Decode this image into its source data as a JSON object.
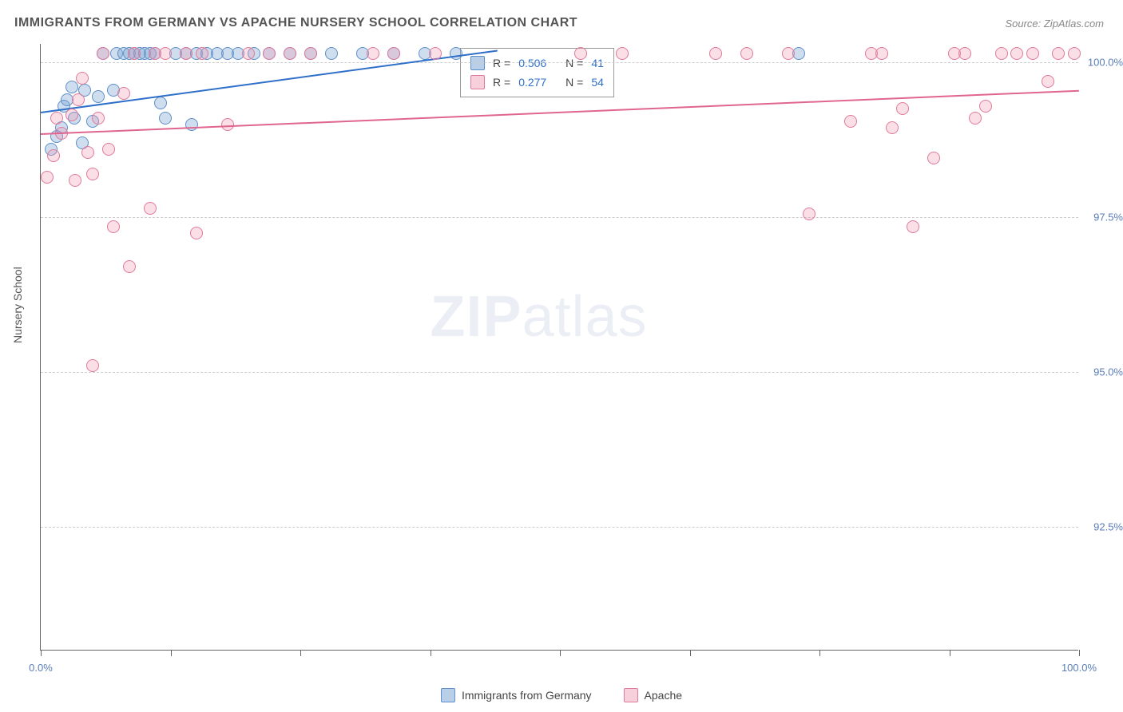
{
  "title": "IMMIGRANTS FROM GERMANY VS APACHE NURSERY SCHOOL CORRELATION CHART",
  "source": "Source: ZipAtlas.com",
  "watermark_bold": "ZIP",
  "watermark_light": "atlas",
  "chart": {
    "type": "scatter",
    "background_color": "#ffffff",
    "grid_color": "#cccccc",
    "xlim": [
      0,
      100
    ],
    "ylim": [
      90.5,
      100.3
    ],
    "x_axis": {
      "label_min": "0.0%",
      "label_max": "100.0%",
      "tick_positions": [
        0,
        12.5,
        25,
        37.5,
        50,
        62.5,
        75,
        87.5,
        100
      ]
    },
    "y_axis": {
      "title": "Nursery School",
      "ticks": [
        {
          "value": 100.0,
          "label": "100.0%"
        },
        {
          "value": 97.5,
          "label": "97.5%"
        },
        {
          "value": 95.0,
          "label": "95.0%"
        },
        {
          "value": 92.5,
          "label": "92.5%"
        }
      ]
    },
    "series": [
      {
        "name": "Immigrants from Germany",
        "key": "blue",
        "marker_color_fill": "rgba(115,160,210,0.35)",
        "marker_color_stroke": "#5f8fc9",
        "line_color": "#2e6fc9",
        "R": "0.506",
        "N": "41",
        "trend": {
          "x1": 0,
          "y1": 99.2,
          "x2": 44,
          "y2": 100.2
        },
        "points": [
          [
            1.0,
            98.6
          ],
          [
            1.5,
            98.8
          ],
          [
            2.0,
            98.95
          ],
          [
            2.2,
            99.3
          ],
          [
            2.5,
            99.4
          ],
          [
            3.0,
            99.6
          ],
          [
            3.2,
            99.1
          ],
          [
            4.0,
            98.7
          ],
          [
            4.2,
            99.55
          ],
          [
            5.0,
            99.05
          ],
          [
            5.5,
            99.45
          ],
          [
            6.0,
            100.15
          ],
          [
            7.0,
            99.55
          ],
          [
            7.3,
            100.15
          ],
          [
            8.0,
            100.15
          ],
          [
            8.5,
            100.15
          ],
          [
            9.0,
            100.15
          ],
          [
            9.5,
            100.15
          ],
          [
            10.0,
            100.15
          ],
          [
            10.5,
            100.15
          ],
          [
            11.0,
            100.15
          ],
          [
            11.5,
            99.35
          ],
          [
            12.0,
            99.1
          ],
          [
            13.0,
            100.15
          ],
          [
            14.0,
            100.15
          ],
          [
            14.5,
            99.0
          ],
          [
            15.0,
            100.15
          ],
          [
            16.0,
            100.15
          ],
          [
            17.0,
            100.15
          ],
          [
            18.0,
            100.15
          ],
          [
            19.0,
            100.15
          ],
          [
            20.5,
            100.15
          ],
          [
            22.0,
            100.15
          ],
          [
            24.0,
            100.15
          ],
          [
            26.0,
            100.15
          ],
          [
            28.0,
            100.15
          ],
          [
            31.0,
            100.15
          ],
          [
            34.0,
            100.15
          ],
          [
            37.0,
            100.15
          ],
          [
            40.0,
            100.15
          ],
          [
            73.0,
            100.15
          ]
        ]
      },
      {
        "name": "Apache",
        "key": "pink",
        "marker_color_fill": "rgba(240,150,175,0.3)",
        "marker_color_stroke": "#e07a9a",
        "line_color": "#e0658f",
        "R": "0.277",
        "N": "54",
        "trend": {
          "x1": 0,
          "y1": 98.85,
          "x2": 100,
          "y2": 99.55
        },
        "points": [
          [
            0.6,
            98.15
          ],
          [
            1.2,
            98.5
          ],
          [
            1.5,
            99.1
          ],
          [
            2.0,
            98.85
          ],
          [
            3.0,
            99.15
          ],
          [
            3.3,
            98.1
          ],
          [
            3.6,
            99.4
          ],
          [
            4.0,
            99.75
          ],
          [
            4.5,
            98.55
          ],
          [
            5.0,
            98.2
          ],
          [
            5.5,
            99.1
          ],
          [
            6.0,
            100.15
          ],
          [
            6.5,
            98.6
          ],
          [
            7.0,
            97.35
          ],
          [
            8.0,
            99.5
          ],
          [
            8.5,
            96.7
          ],
          [
            9.0,
            100.15
          ],
          [
            10.5,
            97.65
          ],
          [
            11.0,
            100.15
          ],
          [
            12.0,
            100.15
          ],
          [
            14.0,
            100.15
          ],
          [
            15.0,
            97.25
          ],
          [
            15.5,
            100.15
          ],
          [
            18.0,
            99.0
          ],
          [
            20.0,
            100.15
          ],
          [
            22.0,
            100.15
          ],
          [
            24.0,
            100.15
          ],
          [
            26.0,
            100.15
          ],
          [
            32.0,
            100.15
          ],
          [
            34.0,
            100.15
          ],
          [
            38.0,
            100.15
          ],
          [
            52.0,
            100.15
          ],
          [
            56.0,
            100.15
          ],
          [
            65.0,
            100.15
          ],
          [
            68.0,
            100.15
          ],
          [
            72.0,
            100.15
          ],
          [
            74.0,
            97.55
          ],
          [
            78.0,
            99.05
          ],
          [
            80.0,
            100.15
          ],
          [
            81.0,
            100.15
          ],
          [
            82.0,
            98.95
          ],
          [
            83.0,
            99.25
          ],
          [
            84.0,
            97.35
          ],
          [
            86.0,
            98.45
          ],
          [
            88.0,
            100.15
          ],
          [
            89.0,
            100.15
          ],
          [
            90.0,
            99.1
          ],
          [
            91.0,
            99.3
          ],
          [
            92.5,
            100.15
          ],
          [
            94.0,
            100.15
          ],
          [
            95.5,
            100.15
          ],
          [
            97.0,
            99.7
          ],
          [
            98.0,
            100.15
          ],
          [
            99.5,
            100.15
          ],
          [
            5.0,
            95.1
          ]
        ]
      }
    ],
    "stats_box": {
      "row1": {
        "R_label": "R =",
        "N_label": "N ="
      },
      "row2": {
        "R_label": "R =",
        "N_label": "N ="
      }
    },
    "bottom_legend": [
      {
        "key": "blue",
        "label": "Immigrants from Germany"
      },
      {
        "key": "pink",
        "label": "Apache"
      }
    ]
  }
}
